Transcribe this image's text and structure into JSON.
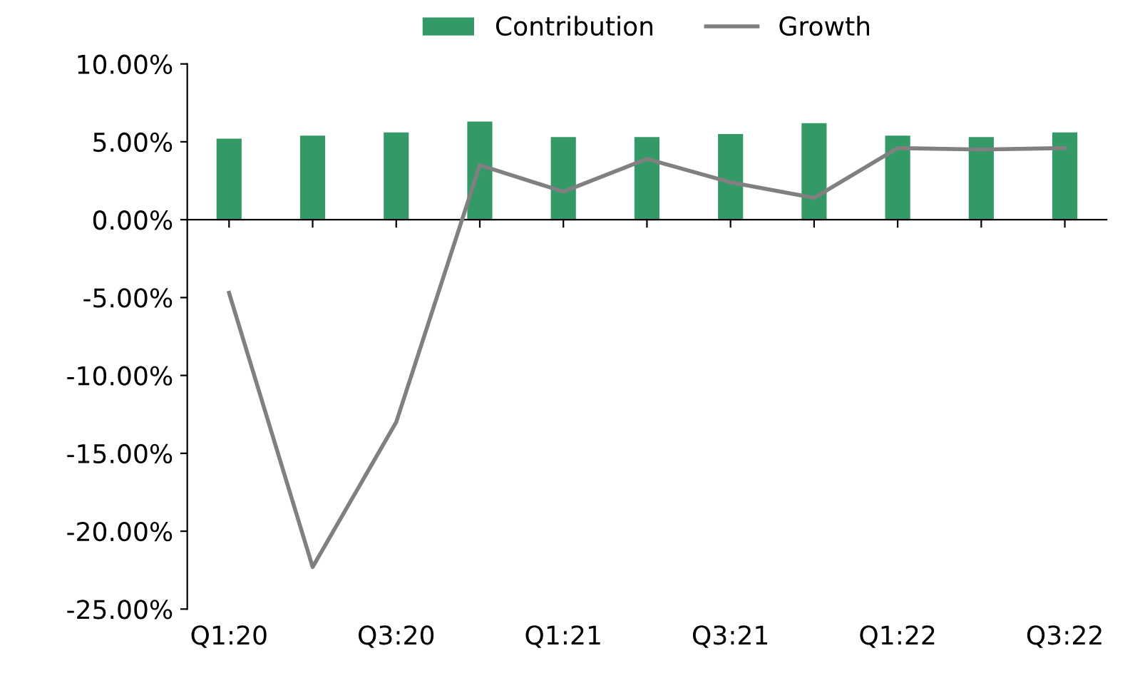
{
  "chart_data": {
    "type": "bar",
    "categories": [
      "Q1:20",
      null,
      "Q3:20",
      null,
      "Q1:21",
      null,
      "Q3:21",
      null,
      "Q1:22",
      null,
      "Q3:22"
    ],
    "series": [
      {
        "name": "Contribution",
        "color": "#339966",
        "values": [
          5.2,
          5.4,
          5.6,
          6.3,
          5.3,
          5.3,
          5.5,
          6.2,
          5.4,
          5.3,
          5.6
        ]
      },
      {
        "name": "Growth",
        "type": "line",
        "color": "#808080",
        "values": [
          -4.7,
          -22.3,
          -13.0,
          3.5,
          1.8,
          3.9,
          2.4,
          1.4,
          4.6,
          4.5,
          4.6
        ]
      }
    ],
    "ylim": [
      -25,
      10
    ],
    "yticks": [
      {
        "value": -25,
        "label": "-25.00%"
      },
      {
        "value": -20,
        "label": "-20.00%"
      },
      {
        "value": -15,
        "label": "-15.00%"
      },
      {
        "value": -10,
        "label": "-10.00%"
      },
      {
        "value": -5,
        "label": "-5.00%"
      },
      {
        "value": 0,
        "label": "0.00%"
      },
      {
        "value": 5,
        "label": "5.00%"
      },
      {
        "value": 10,
        "label": "10.00%"
      }
    ],
    "legend": "top"
  }
}
